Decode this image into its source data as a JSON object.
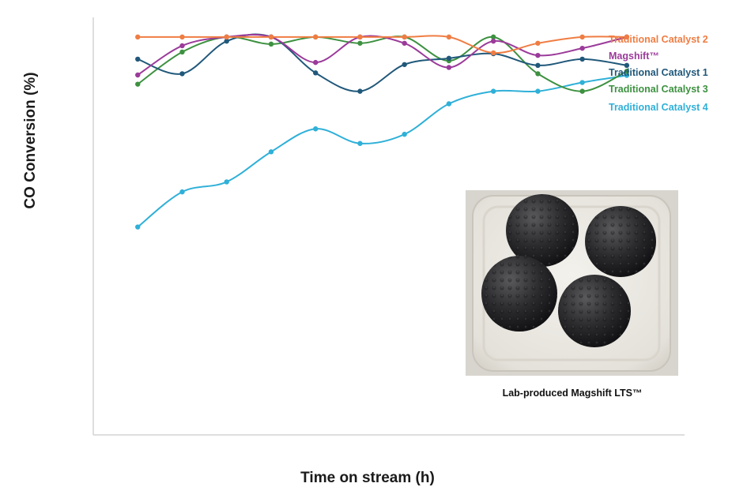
{
  "chart_data": {
    "type": "line",
    "title": "",
    "xlabel": "Time on stream (h)",
    "ylabel": "CO Conversion (%)",
    "x": [
      1,
      2,
      3,
      4,
      5,
      6,
      7,
      8,
      9,
      10,
      11,
      12
    ],
    "xlim": [
      0,
      13.3
    ],
    "ylim": [
      0,
      100
    ],
    "grid": false,
    "legend": "right, end-of-line labels",
    "series": [
      {
        "name": "Traditional Catalyst 2",
        "color": "#ef7d43",
        "values": [
          95.3,
          95.3,
          95.3,
          95.3,
          95.3,
          95.3,
          95.3,
          95.3,
          91.5,
          93.8,
          95.3,
          95.3
        ]
      },
      {
        "name": "Magshift™",
        "color": "#9b3b9a",
        "values": [
          86.2,
          93.2,
          95.3,
          95.3,
          89.2,
          95.3,
          93.8,
          88.0,
          94.3,
          90.9,
          92.6,
          95.3
        ]
      },
      {
        "name": "Traditional Catalyst 1",
        "color": "#20587a",
        "values": [
          90.0,
          86.5,
          94.3,
          95.3,
          86.7,
          82.3,
          88.7,
          90.2,
          91.3,
          88.5,
          90.0,
          88.5
        ]
      },
      {
        "name": "Traditional Catalyst 3",
        "color": "#3d9140",
        "values": [
          84.0,
          91.7,
          95.3,
          93.6,
          95.3,
          93.8,
          95.3,
          89.6,
          95.3,
          86.5,
          82.3,
          87.1
        ]
      },
      {
        "name": "Traditional Catalyst 4",
        "color": "#2fb0d8",
        "values": [
          49.8,
          58.2,
          60.6,
          67.8,
          73.3,
          69.8,
          72.0,
          79.3,
          82.3,
          82.3,
          84.4,
          86.1
        ]
      }
    ],
    "inset": {
      "caption": "Lab-produced Magshift LTS™"
    }
  }
}
